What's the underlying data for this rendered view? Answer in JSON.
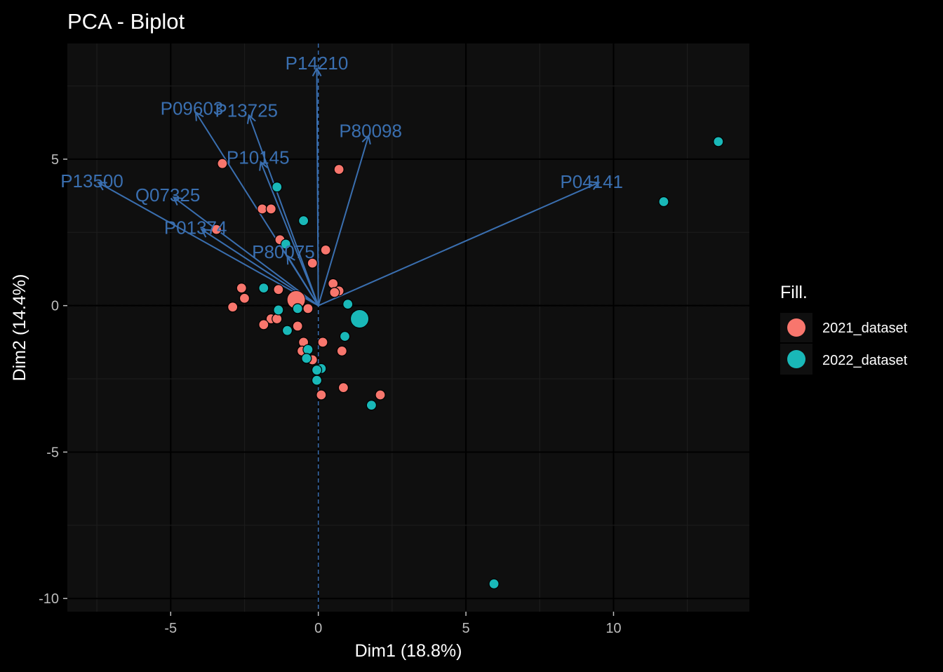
{
  "chart_data": {
    "type": "scatter",
    "title": "PCA - Biplot",
    "xlabel": "Dim1 (18.8%)",
    "ylabel": "Dim2 (14.4%)",
    "xlim": [
      -8.5,
      14.6
    ],
    "ylim": [
      -10.45,
      8.95
    ],
    "x_ticks": [
      -5,
      0,
      5,
      10
    ],
    "y_ticks": [
      -10,
      -5,
      0,
      5
    ],
    "grid": true,
    "legend": {
      "title": "Fill.",
      "position": "right",
      "entries": [
        {
          "label": "2021_dataset",
          "color": "#f8766d"
        },
        {
          "label": "2022_dataset",
          "color": "#19b8b8"
        }
      ]
    },
    "vector_color": "#3a6fb0",
    "vectors": [
      {
        "name": "P14210",
        "x": -0.05,
        "y": 8.1
      },
      {
        "name": "P09603",
        "x": -4.15,
        "y": 6.6
      },
      {
        "name": "P13725",
        "x": -2.35,
        "y": 6.5
      },
      {
        "name": "P80098",
        "x": 1.7,
        "y": 5.8
      },
      {
        "name": "P10145",
        "x": -1.95,
        "y": 4.9
      },
      {
        "name": "P13500",
        "x": -7.45,
        "y": 4.2
      },
      {
        "name": "Q07325",
        "x": -4.9,
        "y": 3.7
      },
      {
        "name": "P01374",
        "x": -3.95,
        "y": 2.6
      },
      {
        "name": "P04141",
        "x": 9.5,
        "y": 4.2
      },
      {
        "name": "P80075",
        "x": -1.05,
        "y": 1.7
      }
    ],
    "series": [
      {
        "name": "2021_dataset",
        "color": "#f8766d",
        "points": [
          {
            "x": -3.25,
            "y": 4.85
          },
          {
            "x": 0.7,
            "y": 4.65
          },
          {
            "x": -1.9,
            "y": 3.3
          },
          {
            "x": -1.6,
            "y": 3.3
          },
          {
            "x": -3.45,
            "y": 2.6
          },
          {
            "x": -1.3,
            "y": 2.25
          },
          {
            "x": 0.25,
            "y": 1.9
          },
          {
            "x": -0.2,
            "y": 1.45
          },
          {
            "x": 0.5,
            "y": 0.75
          },
          {
            "x": 0.7,
            "y": 0.5
          },
          {
            "x": 0.55,
            "y": 0.45
          },
          {
            "x": -2.6,
            "y": 0.6
          },
          {
            "x": -1.35,
            "y": 0.55
          },
          {
            "x": -2.5,
            "y": 0.25
          },
          {
            "x": -2.9,
            "y": -0.05
          },
          {
            "x": -0.35,
            "y": -0.1
          },
          {
            "x": -1.6,
            "y": -0.45
          },
          {
            "x": -1.4,
            "y": -0.45
          },
          {
            "x": -1.85,
            "y": -0.65
          },
          {
            "x": -0.7,
            "y": -0.7
          },
          {
            "x": -0.5,
            "y": -1.25
          },
          {
            "x": 0.15,
            "y": -1.25
          },
          {
            "x": -0.55,
            "y": -1.55
          },
          {
            "x": 0.8,
            "y": -1.55
          },
          {
            "x": -0.2,
            "y": -1.85
          },
          {
            "x": 0.85,
            "y": -2.8
          },
          {
            "x": 2.1,
            "y": -3.05
          },
          {
            "x": 0.1,
            "y": -3.05
          },
          {
            "x": -0.75,
            "y": 0.2,
            "size": "large"
          }
        ]
      },
      {
        "name": "2022_dataset",
        "color": "#19b8b8",
        "points": [
          {
            "x": 13.55,
            "y": 5.6
          },
          {
            "x": 11.7,
            "y": 3.55
          },
          {
            "x": -1.4,
            "y": 4.05
          },
          {
            "x": -0.5,
            "y": 2.9
          },
          {
            "x": -1.1,
            "y": 2.1
          },
          {
            "x": -1.85,
            "y": 0.6
          },
          {
            "x": 1.0,
            "y": 0.05
          },
          {
            "x": -1.35,
            "y": -0.15
          },
          {
            "x": -0.7,
            "y": -0.1
          },
          {
            "x": -1.05,
            "y": -0.85
          },
          {
            "x": 0.9,
            "y": -1.05
          },
          {
            "x": -0.35,
            "y": -1.5
          },
          {
            "x": -0.4,
            "y": -1.8
          },
          {
            "x": 0.1,
            "y": -2.15
          },
          {
            "x": -0.05,
            "y": -2.2
          },
          {
            "x": -0.05,
            "y": -2.55
          },
          {
            "x": 1.8,
            "y": -3.4
          },
          {
            "x": 5.95,
            "y": -9.5
          },
          {
            "x": 1.4,
            "y": -0.45,
            "size": "large"
          }
        ]
      }
    ]
  }
}
